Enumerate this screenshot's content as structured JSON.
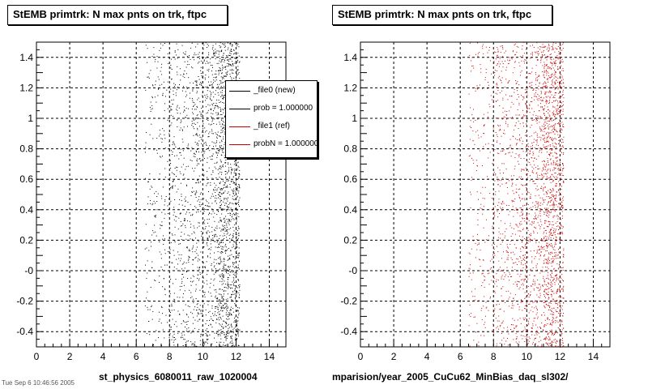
{
  "footer_left": "st_physics_6080011_raw_1020004",
  "footer_right": "mparision/year_2005_CuCu62_MinBias_daq_sl302/",
  "corner_text": "Tue Sep  6 10:46:56 2005",
  "legend": [
    {
      "label": "_file0 (new)",
      "color": "#000000"
    },
    {
      "label": "prob = 1.000000",
      "color": "#000000"
    },
    {
      "label": "_file1 (ref)",
      "color": "#cc0000"
    },
    {
      "label": "probN = 1.000000",
      "color": "#cc0000"
    }
  ],
  "chart_data": [
    {
      "type": "scatter",
      "title": "StEMB primtrk: N max pnts on trk, ftpc",
      "xlim": [
        0,
        15
      ],
      "ylim": [
        -0.5,
        1.5
      ],
      "xticks": [
        "0",
        "2",
        "4",
        "6",
        "8",
        "10",
        "12",
        "14"
      ],
      "yticks": [
        "-0.4",
        "-0.2",
        "-0",
        "0.2",
        "0.4",
        "0.6",
        "0.8",
        "1",
        "1.2",
        "1.4"
      ],
      "grid": true,
      "marker_color": "#000000",
      "density_profile": [
        {
          "x_range": [
            6.5,
            8.0
          ],
          "relative_density": 0.15
        },
        {
          "x_range": [
            8.0,
            9.5
          ],
          "relative_density": 0.3
        },
        {
          "x_range": [
            9.5,
            10.5
          ],
          "relative_density": 0.45
        },
        {
          "x_range": [
            10.5,
            11.0
          ],
          "relative_density": 0.6
        },
        {
          "x_range": [
            11.0,
            12.2
          ],
          "relative_density": 1.0
        }
      ]
    },
    {
      "type": "scatter",
      "title": "StEMB primtrk: N max pnts on trk, ftpc",
      "xlim": [
        0,
        15
      ],
      "ylim": [
        -0.5,
        1.5
      ],
      "xticks": [
        "0",
        "2",
        "4",
        "6",
        "8",
        "10",
        "12",
        "14"
      ],
      "yticks": [
        "-0.4",
        "-0.2",
        "-0",
        "0.2",
        "0.4",
        "0.6",
        "0.8",
        "1",
        "1.2",
        "1.4"
      ],
      "grid": true,
      "marker_color": "#cc0000",
      "density_profile": [
        {
          "x_range": [
            6.5,
            8.0
          ],
          "relative_density": 0.15
        },
        {
          "x_range": [
            8.0,
            9.5
          ],
          "relative_density": 0.3
        },
        {
          "x_range": [
            9.5,
            10.5
          ],
          "relative_density": 0.45
        },
        {
          "x_range": [
            10.5,
            11.0
          ],
          "relative_density": 0.6
        },
        {
          "x_range": [
            11.0,
            12.2
          ],
          "relative_density": 1.0
        }
      ]
    }
  ]
}
